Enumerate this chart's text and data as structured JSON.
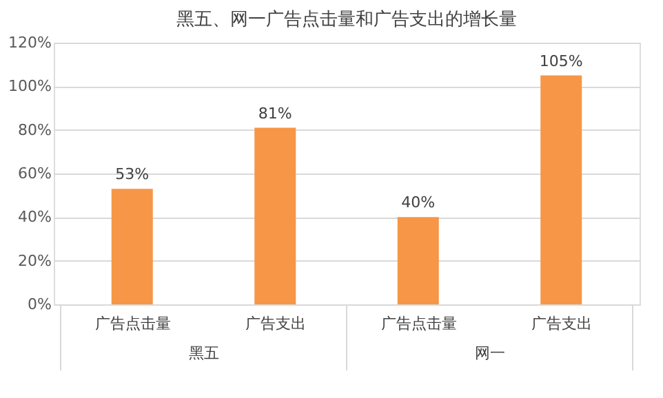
{
  "chart_data": {
    "type": "bar",
    "title": "黑五、网一广告点击量和广告支出的增长量",
    "categories": [
      "广告点击量",
      "广告支出",
      "广告点击量",
      "广告支出"
    ],
    "values": [
      53,
      81,
      40,
      105
    ],
    "value_labels": [
      "53%",
      "81%",
      "40%",
      "105%"
    ],
    "color": "#f79646",
    "ylim": [
      0,
      120
    ],
    "yticks": [
      {
        "value": 0,
        "label": "0%"
      },
      {
        "value": 20,
        "label": "20%"
      },
      {
        "value": 40,
        "label": "40%"
      },
      {
        "value": 60,
        "label": "60%"
      },
      {
        "value": 80,
        "label": "80%"
      },
      {
        "value": 100,
        "label": "100%"
      },
      {
        "value": 120,
        "label": "120%"
      }
    ],
    "grid": "y",
    "annotations": [
      "黑五",
      "网一"
    ]
  }
}
